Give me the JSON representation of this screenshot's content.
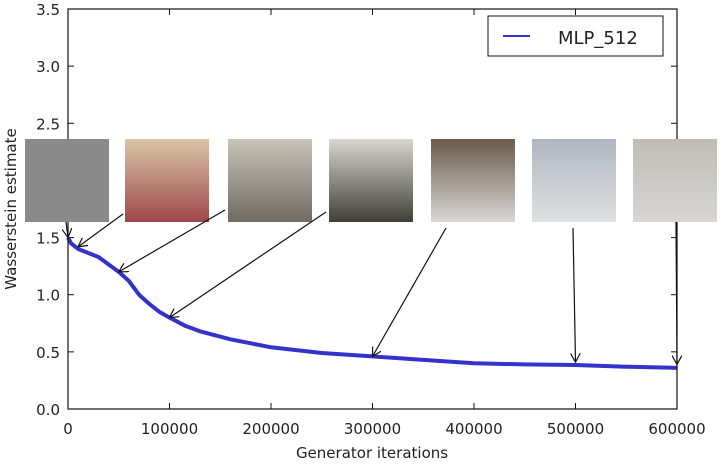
{
  "chart_data": {
    "type": "line",
    "title": "",
    "xlabel": "Generator iterations",
    "ylabel": "Wasserstein estimate",
    "xlim": [
      0,
      600000
    ],
    "ylim": [
      0,
      3.5
    ],
    "xticks": [
      0,
      100000,
      200000,
      300000,
      400000,
      500000,
      600000
    ],
    "yticks": [
      0.0,
      0.5,
      1.0,
      1.5,
      2.5,
      3.0,
      3.5
    ],
    "ytick_labels": [
      "0.0",
      "0.5",
      "1.0",
      "1.5",
      "2.5",
      "3.0",
      "3.5"
    ],
    "grid": false,
    "legend_position": "top-right",
    "series": [
      {
        "name": "MLP_512",
        "color": "#3333cc",
        "x": [
          0,
          3000,
          10000,
          30000,
          50000,
          60000,
          70000,
          80000,
          90000,
          100000,
          115000,
          130000,
          160000,
          200000,
          250000,
          300000,
          350000,
          400000,
          450000,
          500000,
          550000,
          600000
        ],
        "y": [
          1.5,
          1.45,
          1.4,
          1.33,
          1.2,
          1.12,
          1.0,
          0.92,
          0.85,
          0.8,
          0.73,
          0.68,
          0.61,
          0.54,
          0.49,
          0.46,
          0.43,
          0.4,
          0.39,
          0.385,
          0.37,
          0.36
        ]
      }
    ],
    "annotations": [
      {
        "kind": "sample-image",
        "tone": [
          "#8a8a8a",
          "#8a8a8a"
        ],
        "arrow_to": [
          0,
          1.5
        ]
      },
      {
        "kind": "sample-image",
        "tone": [
          "#d8c6a8",
          "#a0474a"
        ],
        "arrow_to": [
          10000,
          1.42
        ]
      },
      {
        "kind": "sample-image",
        "tone": [
          "#c8c4b8",
          "#6f6b62"
        ],
        "arrow_to": [
          50000,
          1.2
        ]
      },
      {
        "kind": "sample-image",
        "tone": [
          "#d9d6cf",
          "#3f3f38"
        ],
        "arrow_to": [
          100000,
          0.8
        ]
      },
      {
        "kind": "sample-image",
        "tone": [
          "#6a5a4a",
          "#d8d8d8"
        ],
        "arrow_to": [
          300000,
          0.46
        ]
      },
      {
        "kind": "sample-image",
        "tone": [
          "#b0b6c0",
          "#e0e0e0"
        ],
        "arrow_to": [
          500000,
          0.41
        ]
      },
      {
        "kind": "sample-image",
        "tone": [
          "#c0bcb4",
          "#d6d6d6"
        ],
        "arrow_to": [
          600000,
          0.39
        ]
      }
    ]
  }
}
